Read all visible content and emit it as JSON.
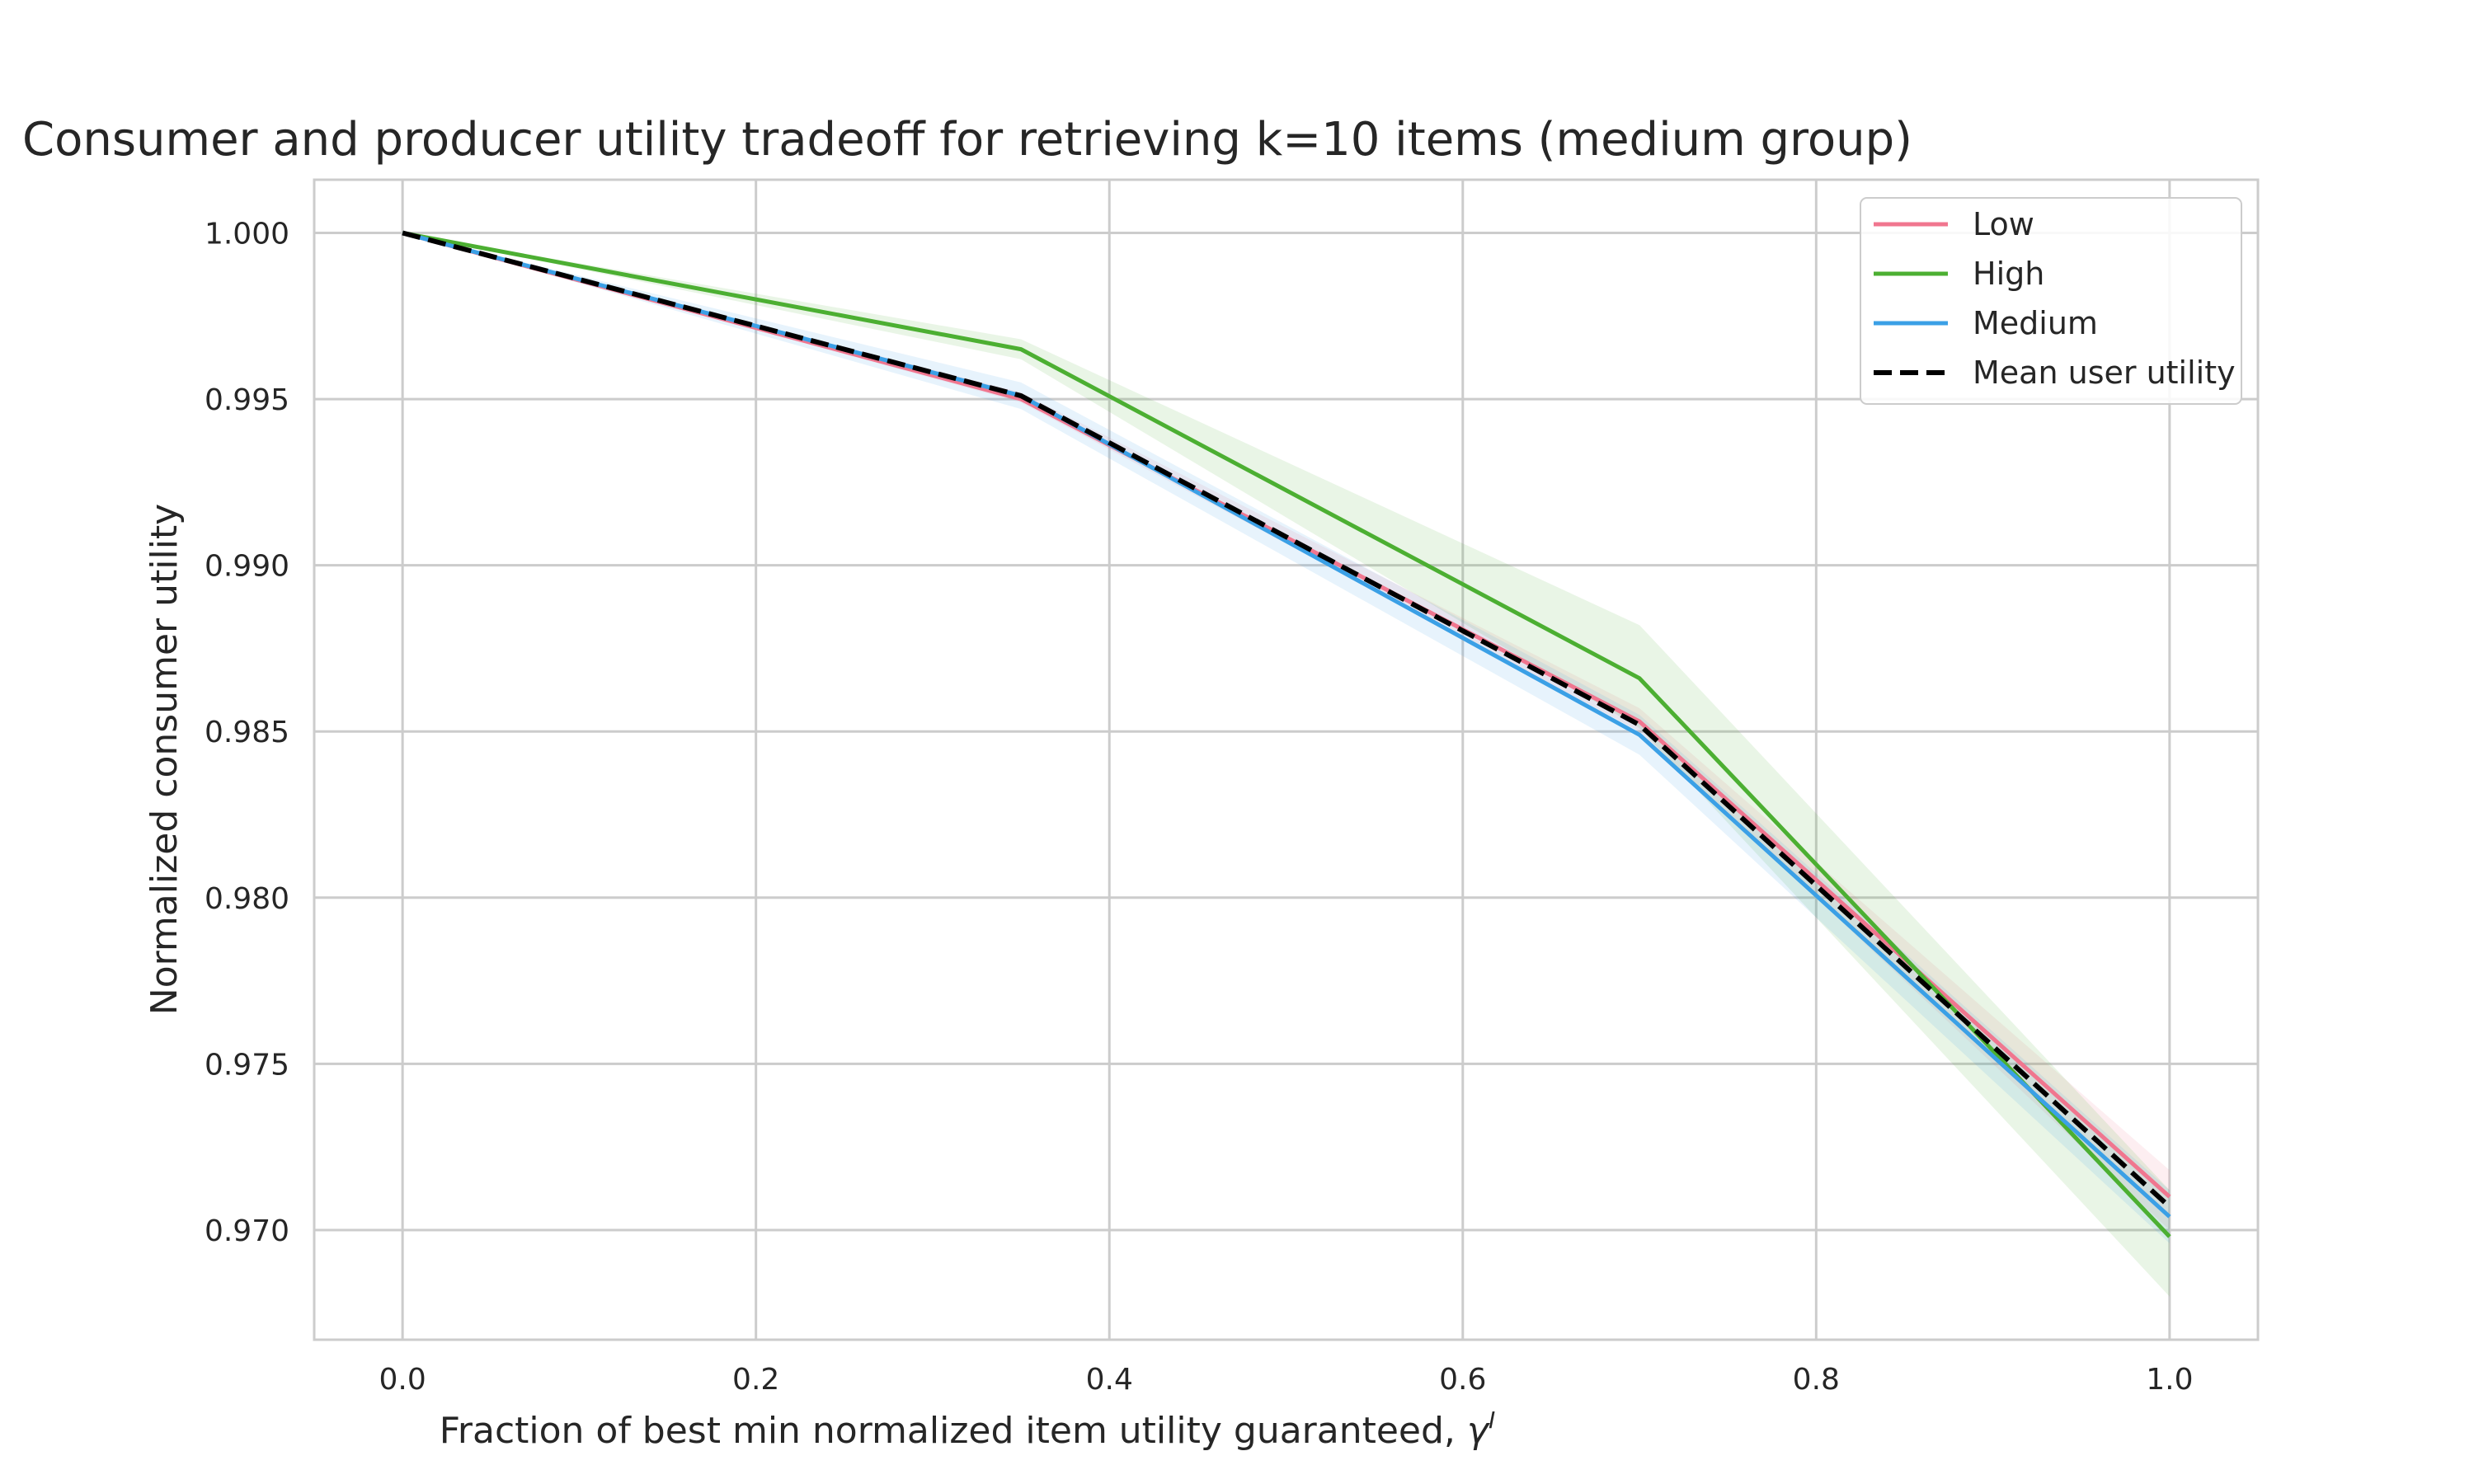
{
  "chart_data": {
    "type": "line",
    "title": "Consumer and producer utility tradeoff for retrieving k=10 items (medium group)",
    "xlabel": "Fraction of best min normalized item utility guaranteed, ",
    "xlabel_symbol": "γ",
    "xlabel_sup": "I",
    "ylabel": "Normalized consumer utility",
    "xlim": [
      -0.05,
      1.05
    ],
    "ylim": [
      0.9667,
      1.0016
    ],
    "xticks": [
      0.0,
      0.2,
      0.4,
      0.6,
      0.8,
      1.0
    ],
    "xtick_labels": [
      "0.0",
      "0.2",
      "0.4",
      "0.6",
      "0.8",
      "1.0"
    ],
    "yticks": [
      0.97,
      0.975,
      0.98,
      0.985,
      0.99,
      0.995,
      1.0
    ],
    "ytick_labels": [
      "0.970",
      "0.975",
      "0.980",
      "0.985",
      "0.990",
      "0.995",
      "1.000"
    ],
    "grid": true,
    "legend_position": "top-right",
    "x": [
      0.0,
      0.35,
      0.7,
      1.0
    ],
    "series": [
      {
        "name": "Low",
        "color": "#f0768f",
        "dash": false,
        "values": [
          1.0,
          0.995,
          0.9853,
          0.971
        ],
        "band_lower": [
          1.0,
          0.9949,
          0.985,
          0.97
        ],
        "band_upper": [
          1.0,
          0.9952,
          0.9857,
          0.9718
        ]
      },
      {
        "name": "High",
        "color": "#4caf32",
        "dash": false,
        "values": [
          1.0,
          0.9965,
          0.9866,
          0.9698
        ],
        "band_lower": [
          1.0,
          0.9962,
          0.9851,
          0.968
        ],
        "band_upper": [
          1.0,
          0.9968,
          0.9882,
          0.9712
        ]
      },
      {
        "name": "Medium",
        "color": "#3ba0e6",
        "dash": false,
        "values": [
          1.0,
          0.9951,
          0.9849,
          0.9704
        ],
        "band_lower": [
          1.0,
          0.9947,
          0.9843,
          0.9696
        ],
        "band_upper": [
          1.0,
          0.9955,
          0.9855,
          0.9712
        ]
      },
      {
        "name": "Mean user utility",
        "color": "#000000",
        "dash": true,
        "values": [
          1.0,
          0.9951,
          0.9852,
          0.9707
        ]
      }
    ]
  }
}
